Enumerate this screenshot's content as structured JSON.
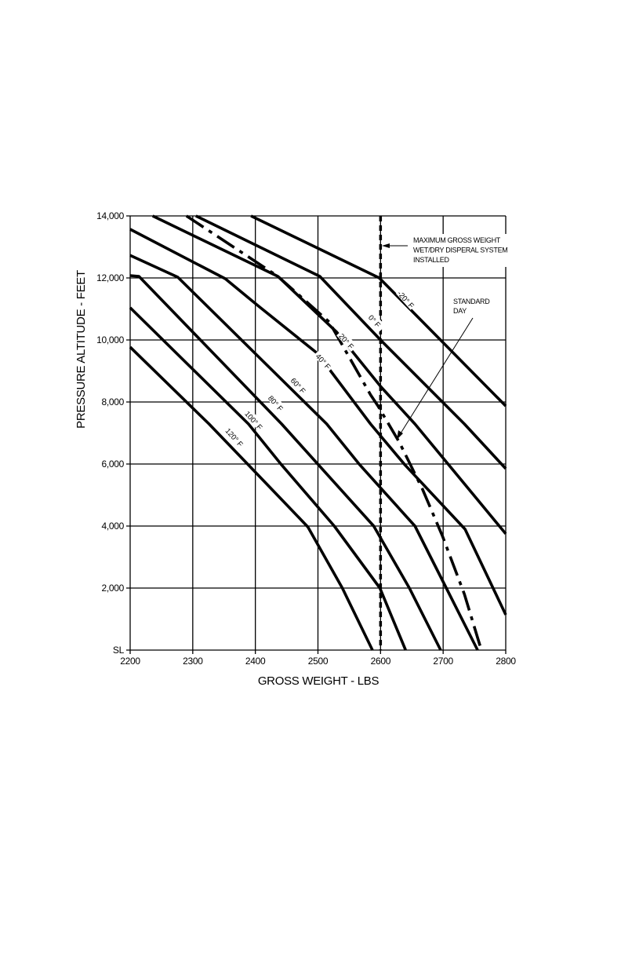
{
  "chart_data": {
    "type": "line",
    "title": "",
    "xlabel": "GROSS WEIGHT - LBS",
    "ylabel": "PRESSURE ALTITUDE - FEET",
    "xlim": [
      2200,
      2800
    ],
    "ylim": [
      0,
      14000
    ],
    "grid": true,
    "x_ticks": [
      2200,
      2300,
      2400,
      2500,
      2600,
      2700,
      2800
    ],
    "x_tick_labels": [
      "2200",
      "2300",
      "2400",
      "2500",
      "2600",
      "2700",
      "2800"
    ],
    "y_ticks": [
      0,
      2000,
      4000,
      6000,
      8000,
      10000,
      12000,
      14000
    ],
    "y_tick_labels": [
      "SL",
      "2,000",
      "4,000",
      "6,000",
      "8,000",
      "10,000",
      "12,000",
      "14,000"
    ],
    "series": [
      {
        "name": "-20° F",
        "style": "solid",
        "label_at": [
          2640,
          11300
        ],
        "points": [
          [
            2393,
            14000
          ],
          [
            2598,
            12000
          ],
          [
            2800,
            7870
          ]
        ]
      },
      {
        "name": "0° F",
        "style": "solid",
        "label_at": [
          2590,
          10600
        ],
        "points": [
          [
            2305,
            14000
          ],
          [
            2503,
            12050
          ],
          [
            2600,
            10000
          ],
          [
            2734,
            7290
          ],
          [
            2800,
            5850
          ]
        ]
      },
      {
        "name": "20° F",
        "style": "solid",
        "label_at": [
          2545,
          9950
        ],
        "points": [
          [
            2236,
            14000
          ],
          [
            2436,
            12050
          ],
          [
            2530,
            10250
          ],
          [
            2601,
            8480
          ],
          [
            2655,
            7290
          ],
          [
            2800,
            3750
          ]
        ]
      },
      {
        "name": "40° F",
        "style": "solid",
        "label_at": [
          2508,
          9300
        ],
        "points": [
          [
            2200,
            13570
          ],
          [
            2352,
            11975
          ],
          [
            2405,
            11090
          ],
          [
            2499,
            9570
          ],
          [
            2584,
            7290
          ],
          [
            2639,
            5970
          ],
          [
            2735,
            3900
          ],
          [
            2800,
            1140
          ]
        ]
      },
      {
        "name": "60° F",
        "style": "solid",
        "label_at": [
          2468,
          8520
        ],
        "points": [
          [
            2200,
            12730
          ],
          [
            2276,
            12025
          ],
          [
            2514,
            7290
          ],
          [
            2567,
            5970
          ],
          [
            2655,
            4000
          ],
          [
            2705,
            2000
          ],
          [
            2755,
            0
          ]
        ]
      },
      {
        "name": "80° F",
        "style": "solid",
        "label_at": [
          2432,
          7950
        ],
        "points": [
          [
            2200,
            12075
          ],
          [
            2214,
            12050
          ],
          [
            2442,
            7290
          ],
          [
            2501,
            5970
          ],
          [
            2589,
            4000
          ],
          [
            2646,
            2000
          ],
          [
            2696,
            0
          ]
        ]
      },
      {
        "name": "100° F",
        "style": "solid",
        "label_at": [
          2397,
          7400
        ],
        "points": [
          [
            2200,
            11040
          ],
          [
            2389,
            7290
          ],
          [
            2442,
            5970
          ],
          [
            2526,
            4000
          ],
          [
            2599,
            2000
          ],
          [
            2640,
            0
          ]
        ]
      },
      {
        "name": "120° F",
        "style": "solid",
        "label_at": [
          2366,
          6850
        ],
        "points": [
          [
            2200,
            9770
          ],
          [
            2326,
            7290
          ],
          [
            2389,
            5970
          ],
          [
            2484,
            3970
          ],
          [
            2539,
            2000
          ],
          [
            2587,
            0
          ]
        ]
      },
      {
        "name": "STANDARD DAY",
        "style": "dash-dot",
        "points": [
          [
            2290,
            14000
          ],
          [
            2436,
            12050
          ],
          [
            2518,
            10580
          ],
          [
            2584,
            8230
          ],
          [
            2596,
            7870
          ],
          [
            2630,
            6700
          ],
          [
            2667,
            5190
          ],
          [
            2699,
            3670
          ],
          [
            2734,
            1800
          ],
          [
            2761,
            0
          ]
        ]
      }
    ],
    "reference_lines": [
      {
        "type": "vertical",
        "x": 2600,
        "style": "dashed",
        "label": "MAXIMUM GROSS WEIGHT\nWET/DRY DISPERAL SYSTEM\nINSTALLED"
      }
    ],
    "annotations": {
      "max_weight": [
        "MAXIMUM GROSS WEIGHT",
        "WET/DRY DISPERAL SYSTEM",
        "INSTALLED"
      ],
      "standard_day": [
        "STANDARD",
        "DAY"
      ]
    }
  }
}
